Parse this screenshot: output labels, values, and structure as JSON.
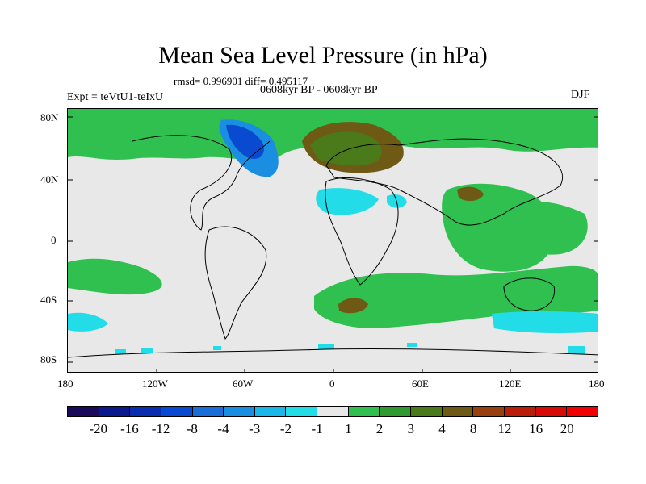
{
  "title": "Mean Sea Level Pressure (in hPa)",
  "stats_line": "rmsd= 0.996901 diff= 0.495117",
  "period_line": "0608kyr BP - 0608kyr BP",
  "experiment": "Expt = teVtU1-teIxU",
  "season": "DJF",
  "lat_labels": [
    "80N",
    "40N",
    "0",
    "40S",
    "80S"
  ],
  "lon_labels": [
    "180",
    "120W",
    "60W",
    "0",
    "60E",
    "120E",
    "180"
  ],
  "colorbar": {
    "levels": [
      "-20",
      "-16",
      "-12",
      "-8",
      "-4",
      "-3",
      "-2",
      "-1",
      "1",
      "2",
      "3",
      "4",
      "8",
      "12",
      "16",
      "20"
    ],
    "colors": [
      "#1a0a5c",
      "#0a1a8c",
      "#0a2eb0",
      "#0a4ad0",
      "#1a6ed8",
      "#1a8ee0",
      "#1ab8e8",
      "#22dde8",
      "#e8e8e8",
      "#30c050",
      "#2f9a30",
      "#4a7a1a",
      "#6e5a14",
      "#98400e",
      "#b81e0a",
      "#d80a06",
      "#f00000"
    ]
  }
}
